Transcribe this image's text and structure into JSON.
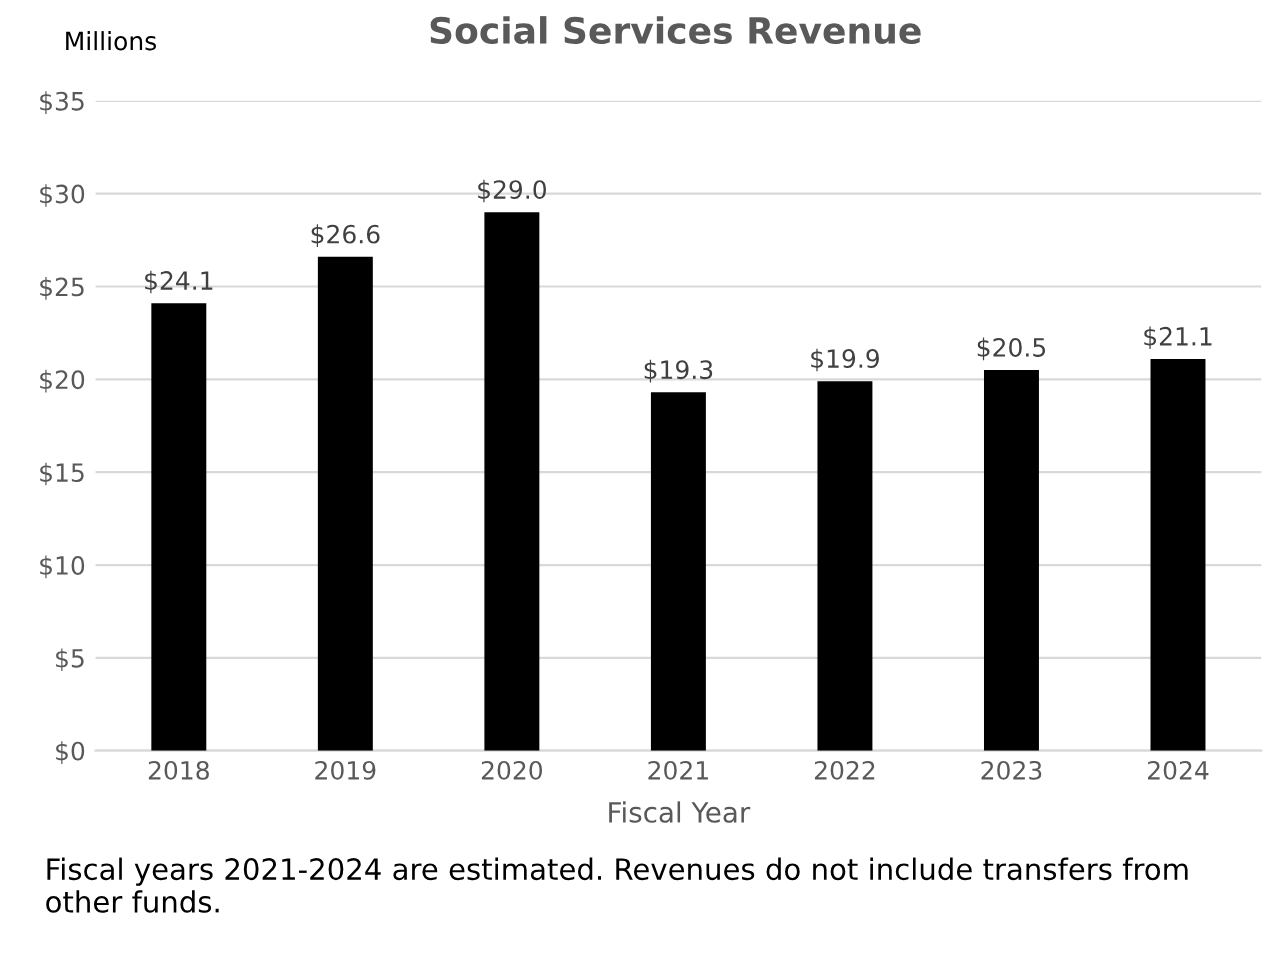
{
  "chart_data": {
    "type": "bar",
    "title": "Social Services Revenue",
    "xlabel": "Fiscal Year",
    "ylabel": "Millions",
    "categories": [
      "2018",
      "2019",
      "2020",
      "2021",
      "2022",
      "2023",
      "2024"
    ],
    "values": [
      24.1,
      26.6,
      29.0,
      19.3,
      19.9,
      20.5,
      21.1
    ],
    "value_labels": [
      "$24.1",
      "$26.6",
      "$29.0",
      "$19.3",
      "$19.9",
      "$20.5",
      "$21.1"
    ],
    "color": "#000000",
    "ylim": [
      0,
      35
    ],
    "yticks": [
      {
        "value": 0,
        "label": "$0"
      },
      {
        "value": 5,
        "label": "$5"
      },
      {
        "value": 10,
        "label": "$10"
      },
      {
        "value": 15,
        "label": "$15"
      },
      {
        "value": 20,
        "label": "$20"
      },
      {
        "value": 25,
        "label": "$25"
      },
      {
        "value": 30,
        "label": "$30"
      },
      {
        "value": 35,
        "label": "$35"
      }
    ],
    "grid": "y",
    "legend": false,
    "annotations": [
      "Fiscal years 2021-2024 are estimated. Revenues do not include transfers from other funds."
    ]
  }
}
